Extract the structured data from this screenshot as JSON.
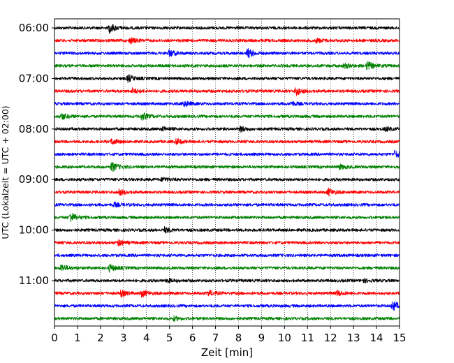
{
  "chart_data": {
    "type": "line",
    "subtype": "helicorder",
    "title": "",
    "xlabel": "Zeit  [min]",
    "ylabel": "UTC (Lokalzeit = UTC + 02:00)",
    "xlim": [
      0,
      15
    ],
    "xticks": [
      0,
      1,
      2,
      3,
      4,
      5,
      6,
      7,
      8,
      9,
      10,
      11,
      12,
      13,
      14,
      15
    ],
    "x_grid": "dotted",
    "start_time": "06:00",
    "trace_interval_min": 15,
    "y_tick_labels": [
      "06:00",
      "07:00",
      "08:00",
      "09:00",
      "10:00",
      "11:00"
    ],
    "color_cycle": [
      "#000000",
      "#ff0000",
      "#0000ff",
      "#008000"
    ],
    "traces": [
      {
        "label": "06:00",
        "color": "#000000",
        "bursts": [
          {
            "t": 2.4,
            "amp": 3.0
          }
        ]
      },
      {
        "label": "06:15",
        "color": "#ff0000",
        "bursts": [
          {
            "t": 3.3,
            "amp": 1.8
          },
          {
            "t": 11.4,
            "amp": 1.3
          }
        ]
      },
      {
        "label": "06:30",
        "color": "#0000ff",
        "bursts": [
          {
            "t": 5.0,
            "amp": 2.0
          },
          {
            "t": 8.4,
            "amp": 3.0
          }
        ]
      },
      {
        "label": "06:45",
        "color": "#008000",
        "bursts": [
          {
            "t": 12.6,
            "amp": 1.5
          },
          {
            "t": 13.6,
            "amp": 2.8
          }
        ]
      },
      {
        "label": "07:00",
        "color": "#000000",
        "bursts": [
          {
            "t": 3.2,
            "amp": 2.2
          }
        ]
      },
      {
        "label": "07:15",
        "color": "#ff0000",
        "bursts": [
          {
            "t": 3.4,
            "amp": 1.6
          },
          {
            "t": 10.5,
            "amp": 2.8
          }
        ]
      },
      {
        "label": "07:30",
        "color": "#0000ff",
        "bursts": [
          {
            "t": 5.6,
            "amp": 2.0
          },
          {
            "t": 10.3,
            "amp": 1.2
          }
        ]
      },
      {
        "label": "07:45",
        "color": "#008000",
        "bursts": [
          {
            "t": 0.3,
            "amp": 2.0
          },
          {
            "t": 3.8,
            "amp": 2.4
          }
        ]
      },
      {
        "label": "08:00",
        "color": "#000000",
        "bursts": [
          {
            "t": 4.7,
            "amp": 1.3
          },
          {
            "t": 8.1,
            "amp": 1.5
          },
          {
            "t": 14.4,
            "amp": 1.2
          }
        ]
      },
      {
        "label": "08:15",
        "color": "#ff0000",
        "bursts": [
          {
            "t": 2.5,
            "amp": 1.8
          },
          {
            "t": 5.3,
            "amp": 1.8
          }
        ]
      },
      {
        "label": "08:30",
        "color": "#0000ff",
        "bursts": [
          {
            "t": 14.8,
            "amp": 2.2
          }
        ]
      },
      {
        "label": "08:45",
        "color": "#008000",
        "bursts": [
          {
            "t": 2.5,
            "amp": 3.0
          },
          {
            "t": 12.4,
            "amp": 1.4
          }
        ]
      },
      {
        "label": "09:00",
        "color": "#000000",
        "bursts": [
          {
            "t": 4.7,
            "amp": 1.3
          }
        ]
      },
      {
        "label": "09:15",
        "color": "#ff0000",
        "bursts": [
          {
            "t": 2.8,
            "amp": 2.2
          },
          {
            "t": 11.9,
            "amp": 2.3
          }
        ]
      },
      {
        "label": "09:30",
        "color": "#0000ff",
        "bursts": [
          {
            "t": 2.6,
            "amp": 1.2
          }
        ]
      },
      {
        "label": "09:45",
        "color": "#008000",
        "bursts": [
          {
            "t": 0.7,
            "amp": 3.2
          }
        ]
      },
      {
        "label": "10:00",
        "color": "#000000",
        "bursts": [
          {
            "t": 4.8,
            "amp": 1.6
          }
        ]
      },
      {
        "label": "10:15",
        "color": "#ff0000",
        "bursts": [
          {
            "t": 2.8,
            "amp": 2.0
          }
        ]
      },
      {
        "label": "10:30",
        "color": "#0000ff",
        "bursts": []
      },
      {
        "label": "10:45",
        "color": "#008000",
        "bursts": [
          {
            "t": 0.3,
            "amp": 2.2
          },
          {
            "t": 2.4,
            "amp": 2.2
          }
        ]
      },
      {
        "label": "11:00",
        "color": "#000000",
        "bursts": [
          {
            "t": 4.9,
            "amp": 1.2
          },
          {
            "t": 13.4,
            "amp": 1.2
          }
        ]
      },
      {
        "label": "11:15",
        "color": "#ff0000",
        "bursts": [
          {
            "t": 2.9,
            "amp": 1.8
          },
          {
            "t": 3.8,
            "amp": 2.2
          },
          {
            "t": 6.7,
            "amp": 1.8
          },
          {
            "t": 12.3,
            "amp": 1.6
          }
        ]
      },
      {
        "label": "11:30",
        "color": "#0000ff",
        "bursts": [
          {
            "t": 14.7,
            "amp": 3.2
          }
        ]
      },
      {
        "label": "11:45",
        "color": "#008000",
        "bursts": [
          {
            "t": 5.2,
            "amp": 1.2
          }
        ]
      }
    ]
  }
}
